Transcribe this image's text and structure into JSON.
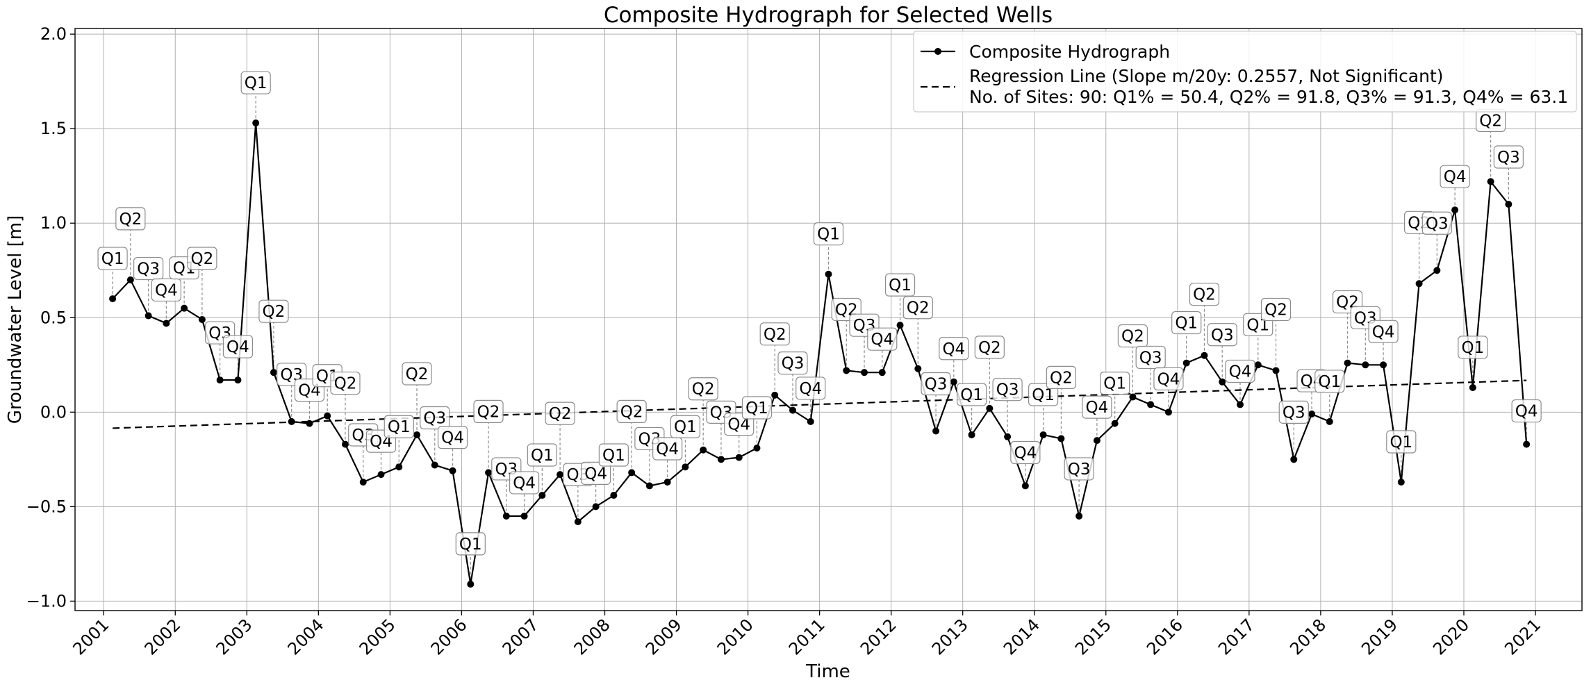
{
  "chart_data": {
    "type": "line",
    "title": "Composite Hydrograph for Selected Wells",
    "xlabel": "Time",
    "ylabel": "Groundwater Level [m]",
    "xlim": [
      2000.6,
      2021.65
    ],
    "ylim": [
      -1.05,
      2.03
    ],
    "xticks": [
      "2001",
      "2002",
      "2003",
      "2004",
      "2005",
      "2006",
      "2007",
      "2008",
      "2009",
      "2010",
      "2011",
      "2012",
      "2013",
      "2014",
      "2015",
      "2016",
      "2017",
      "2018",
      "2019",
      "2020",
      "2021"
    ],
    "yticks": [
      "−1.0",
      "−0.5",
      "0.0",
      "0.5",
      "1.0",
      "1.5",
      "2.0"
    ],
    "grid": true,
    "legend_position": "top-right",
    "legend": {
      "series_label": "Composite Hydrograph",
      "regression_label": "Regression Line (Slope m/20y: 0.2557, Not Significant)",
      "sites_label": "No. of Sites: 90: Q1% = 50.4, Q2% = 91.8, Q3% = 91.3, Q4% = 63.1"
    },
    "series": [
      {
        "name": "Composite Hydrograph",
        "color": "#000000",
        "points": [
          {
            "x": 2001.125,
            "y": 0.6,
            "q": "Q1"
          },
          {
            "x": 2001.375,
            "y": 0.7,
            "q": "Q2"
          },
          {
            "x": 2001.625,
            "y": 0.51,
            "q": "Q3"
          },
          {
            "x": 2001.875,
            "y": 0.47,
            "q": "Q4"
          },
          {
            "x": 2002.125,
            "y": 0.55,
            "q": "Q1"
          },
          {
            "x": 2002.375,
            "y": 0.49,
            "q": "Q2"
          },
          {
            "x": 2002.625,
            "y": 0.17,
            "q": "Q3"
          },
          {
            "x": 2002.875,
            "y": 0.17,
            "q": "Q4"
          },
          {
            "x": 2003.125,
            "y": 1.53,
            "q": "Q1"
          },
          {
            "x": 2003.375,
            "y": 0.21,
            "q": "Q2"
          },
          {
            "x": 2003.625,
            "y": -0.05,
            "q": "Q3"
          },
          {
            "x": 2003.875,
            "y": -0.06,
            "q": "Q4"
          },
          {
            "x": 2004.125,
            "y": -0.02,
            "q": "Q1"
          },
          {
            "x": 2004.375,
            "y": -0.17,
            "q": "Q2"
          },
          {
            "x": 2004.625,
            "y": -0.37,
            "q": "Q3"
          },
          {
            "x": 2004.875,
            "y": -0.33,
            "q": "Q4"
          },
          {
            "x": 2005.125,
            "y": -0.29,
            "q": "Q1"
          },
          {
            "x": 2005.375,
            "y": -0.12,
            "q": "Q2"
          },
          {
            "x": 2005.625,
            "y": -0.28,
            "q": "Q3"
          },
          {
            "x": 2005.875,
            "y": -0.31,
            "q": "Q4"
          },
          {
            "x": 2006.125,
            "y": -0.91,
            "q": "Q1"
          },
          {
            "x": 2006.375,
            "y": -0.32,
            "q": "Q2"
          },
          {
            "x": 2006.625,
            "y": -0.55,
            "q": "Q3"
          },
          {
            "x": 2006.875,
            "y": -0.55,
            "q": "Q4"
          },
          {
            "x": 2007.125,
            "y": -0.44,
            "q": "Q1"
          },
          {
            "x": 2007.375,
            "y": -0.33,
            "q": "Q2"
          },
          {
            "x": 2007.625,
            "y": -0.58,
            "q": "Q3"
          },
          {
            "x": 2007.875,
            "y": -0.5,
            "q": "Q4"
          },
          {
            "x": 2008.125,
            "y": -0.44,
            "q": "Q1"
          },
          {
            "x": 2008.375,
            "y": -0.32,
            "q": "Q2"
          },
          {
            "x": 2008.625,
            "y": -0.39,
            "q": "Q3"
          },
          {
            "x": 2008.875,
            "y": -0.37,
            "q": "Q4"
          },
          {
            "x": 2009.125,
            "y": -0.29,
            "q": "Q1"
          },
          {
            "x": 2009.375,
            "y": -0.2,
            "q": "Q2"
          },
          {
            "x": 2009.625,
            "y": -0.25,
            "q": "Q3"
          },
          {
            "x": 2009.875,
            "y": -0.24,
            "q": "Q4"
          },
          {
            "x": 2010.125,
            "y": -0.19,
            "q": "Q1"
          },
          {
            "x": 2010.375,
            "y": 0.09,
            "q": "Q2"
          },
          {
            "x": 2010.625,
            "y": 0.01,
            "q": "Q3"
          },
          {
            "x": 2010.875,
            "y": -0.05,
            "q": "Q4"
          },
          {
            "x": 2011.125,
            "y": 0.73,
            "q": "Q1"
          },
          {
            "x": 2011.375,
            "y": 0.22,
            "q": "Q2"
          },
          {
            "x": 2011.625,
            "y": 0.21,
            "q": "Q3"
          },
          {
            "x": 2011.875,
            "y": 0.21,
            "q": "Q4"
          },
          {
            "x": 2012.125,
            "y": 0.46,
            "q": "Q1"
          },
          {
            "x": 2012.375,
            "y": 0.23,
            "q": "Q2"
          },
          {
            "x": 2012.625,
            "y": -0.1,
            "q": "Q3"
          },
          {
            "x": 2012.875,
            "y": 0.16,
            "q": "Q4"
          },
          {
            "x": 2013.125,
            "y": -0.12,
            "q": "Q1"
          },
          {
            "x": 2013.375,
            "y": 0.02,
            "q": "Q2"
          },
          {
            "x": 2013.625,
            "y": -0.13,
            "q": "Q3"
          },
          {
            "x": 2013.875,
            "y": -0.39,
            "q": "Q4"
          },
          {
            "x": 2014.125,
            "y": -0.12,
            "q": "Q1"
          },
          {
            "x": 2014.375,
            "y": -0.14,
            "q": "Q2"
          },
          {
            "x": 2014.625,
            "y": -0.55,
            "q": "Q3"
          },
          {
            "x": 2014.875,
            "y": -0.15,
            "q": "Q4"
          },
          {
            "x": 2015.125,
            "y": -0.06,
            "q": "Q1"
          },
          {
            "x": 2015.375,
            "y": 0.08,
            "q": "Q2"
          },
          {
            "x": 2015.625,
            "y": 0.04,
            "q": "Q3"
          },
          {
            "x": 2015.875,
            "y": 0.0,
            "q": "Q4"
          },
          {
            "x": 2016.125,
            "y": 0.26,
            "q": "Q1"
          },
          {
            "x": 2016.375,
            "y": 0.3,
            "q": "Q2"
          },
          {
            "x": 2016.625,
            "y": 0.16,
            "q": "Q3"
          },
          {
            "x": 2016.875,
            "y": 0.04,
            "q": "Q4"
          },
          {
            "x": 2017.125,
            "y": 0.25,
            "q": "Q1"
          },
          {
            "x": 2017.375,
            "y": 0.22,
            "q": "Q2"
          },
          {
            "x": 2017.625,
            "y": -0.25,
            "q": "Q3"
          },
          {
            "x": 2017.875,
            "y": -0.01,
            "q": "Q4"
          },
          {
            "x": 2018.125,
            "y": -0.05,
            "q": "Q1"
          },
          {
            "x": 2018.375,
            "y": 0.26,
            "q": "Q2"
          },
          {
            "x": 2018.625,
            "y": 0.25,
            "q": "Q3"
          },
          {
            "x": 2018.875,
            "y": 0.25,
            "q": "Q4"
          },
          {
            "x": 2019.125,
            "y": -0.37,
            "q": "Q1"
          },
          {
            "x": 2019.375,
            "y": 0.68,
            "q": "Q2"
          },
          {
            "x": 2019.625,
            "y": 0.75,
            "q": "Q3"
          },
          {
            "x": 2019.875,
            "y": 1.07,
            "q": "Q4"
          },
          {
            "x": 2020.125,
            "y": 0.13,
            "q": "Q1"
          },
          {
            "x": 2020.375,
            "y": 1.22,
            "q": "Q2"
          },
          {
            "x": 2020.625,
            "y": 1.1,
            "q": "Q3"
          },
          {
            "x": 2020.875,
            "y": -0.17,
            "q": "Q4"
          }
        ]
      }
    ],
    "regression": {
      "name": "Regression Line (Slope m/20y: 0.2557, Not Significant)",
      "color": "#000000",
      "x": [
        2001.125,
        2020.875
      ],
      "y": [
        -0.085,
        0.168
      ]
    }
  }
}
